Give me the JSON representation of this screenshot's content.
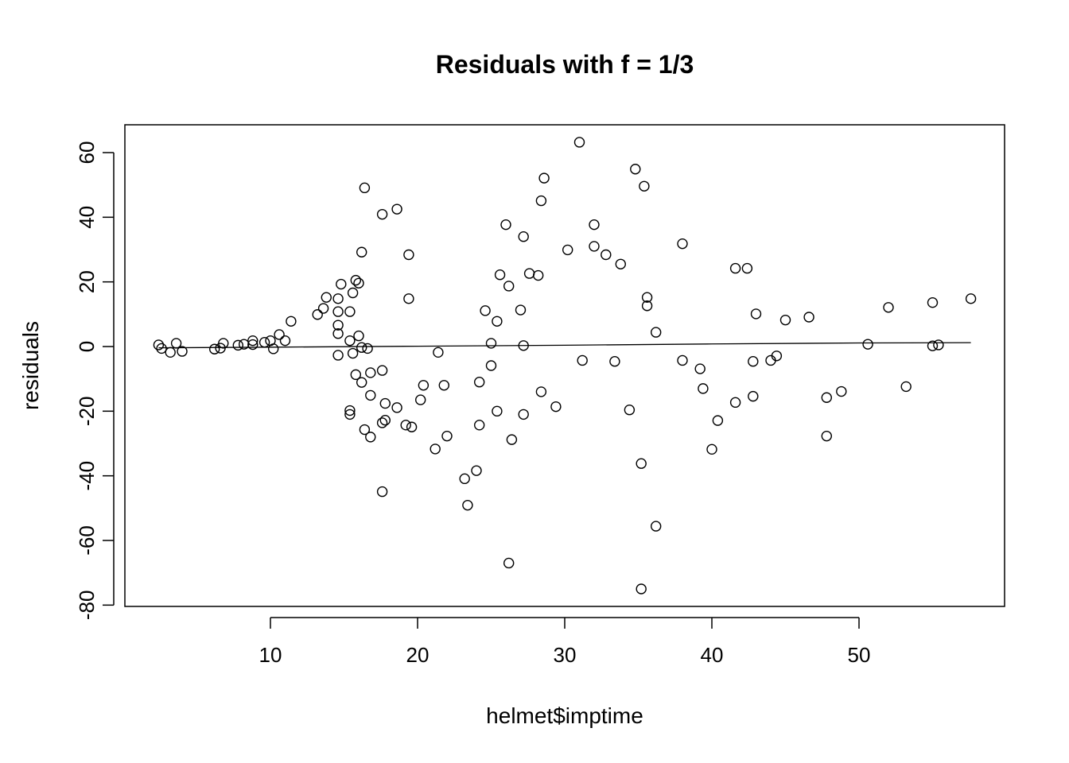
{
  "chart_data": {
    "type": "scatter",
    "title": "Residuals with f = 1/3",
    "xlabel": "helmet$imptime",
    "ylabel": "residuals",
    "xlim": [
      0,
      60
    ],
    "ylim": [
      -80,
      70
    ],
    "xticks": [
      10,
      20,
      30,
      40,
      50
    ],
    "yticks": [
      -80,
      -60,
      -40,
      -20,
      0,
      20,
      40,
      60
    ],
    "xtick_labels": [
      "10",
      "20",
      "30",
      "40",
      "50"
    ],
    "ytick_labels": [
      "-80",
      "-60",
      "-40",
      "-20",
      "0",
      "20",
      "40",
      "60"
    ],
    "grid": false,
    "points": [
      {
        "x": 2.4,
        "y": 0.5
      },
      {
        "x": 2.6,
        "y": -0.6
      },
      {
        "x": 3.2,
        "y": -1.8
      },
      {
        "x": 3.6,
        "y": 1.0
      },
      {
        "x": 4.0,
        "y": -1.5
      },
      {
        "x": 6.2,
        "y": -0.8
      },
      {
        "x": 6.6,
        "y": -0.5
      },
      {
        "x": 6.8,
        "y": 1.0
      },
      {
        "x": 7.8,
        "y": 0.4
      },
      {
        "x": 8.2,
        "y": 0.7
      },
      {
        "x": 8.8,
        "y": 1.8
      },
      {
        "x": 8.8,
        "y": 0.6
      },
      {
        "x": 9.6,
        "y": 1.3
      },
      {
        "x": 10.0,
        "y": 1.8
      },
      {
        "x": 10.2,
        "y": -0.7
      },
      {
        "x": 10.6,
        "y": 3.7
      },
      {
        "x": 11.0,
        "y": 1.8
      },
      {
        "x": 11.4,
        "y": 7.8
      },
      {
        "x": 13.2,
        "y": 9.9
      },
      {
        "x": 13.6,
        "y": 11.8
      },
      {
        "x": 13.8,
        "y": 15.2
      },
      {
        "x": 14.6,
        "y": 14.8
      },
      {
        "x": 14.6,
        "y": 10.8
      },
      {
        "x": 14.6,
        "y": 6.6
      },
      {
        "x": 14.6,
        "y": 4.0
      },
      {
        "x": 14.6,
        "y": -2.7
      },
      {
        "x": 14.8,
        "y": 19.3
      },
      {
        "x": 15.4,
        "y": 10.8
      },
      {
        "x": 15.4,
        "y": 1.8
      },
      {
        "x": 15.4,
        "y": -19.8
      },
      {
        "x": 15.4,
        "y": -21.0
      },
      {
        "x": 15.6,
        "y": 16.6
      },
      {
        "x": 15.6,
        "y": -2.1
      },
      {
        "x": 15.8,
        "y": 20.5
      },
      {
        "x": 15.8,
        "y": -8.7
      },
      {
        "x": 16.0,
        "y": 19.6
      },
      {
        "x": 16.0,
        "y": 3.3
      },
      {
        "x": 16.2,
        "y": 29.2
      },
      {
        "x": 16.2,
        "y": -0.3
      },
      {
        "x": 16.2,
        "y": -11.1
      },
      {
        "x": 16.4,
        "y": 49.1
      },
      {
        "x": 16.4,
        "y": -25.7
      },
      {
        "x": 16.6,
        "y": -0.6
      },
      {
        "x": 16.8,
        "y": -8.1
      },
      {
        "x": 16.8,
        "y": -15.1
      },
      {
        "x": 16.8,
        "y": -28.0
      },
      {
        "x": 17.6,
        "y": 40.9
      },
      {
        "x": 17.6,
        "y": -7.4
      },
      {
        "x": 17.6,
        "y": -23.6
      },
      {
        "x": 17.6,
        "y": -44.9
      },
      {
        "x": 17.8,
        "y": -17.6
      },
      {
        "x": 17.8,
        "y": -22.8
      },
      {
        "x": 18.6,
        "y": 42.5
      },
      {
        "x": 18.6,
        "y": -18.9
      },
      {
        "x": 19.2,
        "y": -24.3
      },
      {
        "x": 19.4,
        "y": 28.4
      },
      {
        "x": 19.4,
        "y": 14.8
      },
      {
        "x": 19.6,
        "y": -24.9
      },
      {
        "x": 20.2,
        "y": -16.5
      },
      {
        "x": 20.4,
        "y": -12.0
      },
      {
        "x": 21.2,
        "y": -31.7
      },
      {
        "x": 21.4,
        "y": -1.8
      },
      {
        "x": 21.8,
        "y": -12.0
      },
      {
        "x": 22.0,
        "y": -27.7
      },
      {
        "x": 23.2,
        "y": -40.9
      },
      {
        "x": 23.4,
        "y": -49.1
      },
      {
        "x": 24.0,
        "y": -38.4
      },
      {
        "x": 24.2,
        "y": -11.0
      },
      {
        "x": 24.2,
        "y": -24.3
      },
      {
        "x": 24.6,
        "y": 11.1
      },
      {
        "x": 25.0,
        "y": 1.0
      },
      {
        "x": 25.0,
        "y": -5.9
      },
      {
        "x": 25.4,
        "y": 7.8
      },
      {
        "x": 25.4,
        "y": -20.0
      },
      {
        "x": 25.6,
        "y": 22.2
      },
      {
        "x": 26.0,
        "y": 37.7
      },
      {
        "x": 26.2,
        "y": 18.7
      },
      {
        "x": 26.2,
        "y": -67.0
      },
      {
        "x": 26.4,
        "y": -28.8
      },
      {
        "x": 27.0,
        "y": 11.3
      },
      {
        "x": 27.2,
        "y": 34.0
      },
      {
        "x": 27.2,
        "y": 0.3
      },
      {
        "x": 27.2,
        "y": -21.0
      },
      {
        "x": 27.6,
        "y": 22.6
      },
      {
        "x": 28.2,
        "y": 22.0
      },
      {
        "x": 28.4,
        "y": 45.1
      },
      {
        "x": 28.4,
        "y": -14.0
      },
      {
        "x": 28.6,
        "y": 52.1
      },
      {
        "x": 29.4,
        "y": -18.6
      },
      {
        "x": 30.2,
        "y": 29.9
      },
      {
        "x": 31.0,
        "y": 63.2
      },
      {
        "x": 31.2,
        "y": -4.3
      },
      {
        "x": 32.0,
        "y": 37.7
      },
      {
        "x": 32.0,
        "y": 31.0
      },
      {
        "x": 32.8,
        "y": 28.4
      },
      {
        "x": 33.4,
        "y": -4.6
      },
      {
        "x": 33.8,
        "y": 25.5
      },
      {
        "x": 34.4,
        "y": -19.6
      },
      {
        "x": 34.8,
        "y": 54.9
      },
      {
        "x": 35.2,
        "y": -36.2
      },
      {
        "x": 35.2,
        "y": -75.0
      },
      {
        "x": 35.4,
        "y": 49.6
      },
      {
        "x": 35.6,
        "y": 15.2
      },
      {
        "x": 35.6,
        "y": 12.6
      },
      {
        "x": 36.2,
        "y": 4.4
      },
      {
        "x": 36.2,
        "y": -55.6
      },
      {
        "x": 38.0,
        "y": 31.8
      },
      {
        "x": 38.0,
        "y": -4.3
      },
      {
        "x": 39.2,
        "y": -6.9
      },
      {
        "x": 39.4,
        "y": -13.0
      },
      {
        "x": 40.0,
        "y": -31.8
      },
      {
        "x": 40.4,
        "y": -22.9
      },
      {
        "x": 41.6,
        "y": 24.2
      },
      {
        "x": 41.6,
        "y": -17.3
      },
      {
        "x": 42.4,
        "y": 24.2
      },
      {
        "x": 42.8,
        "y": -4.6
      },
      {
        "x": 42.8,
        "y": -15.4
      },
      {
        "x": 43.0,
        "y": 10.1
      },
      {
        "x": 44.0,
        "y": -4.3
      },
      {
        "x": 44.4,
        "y": -2.9
      },
      {
        "x": 45.0,
        "y": 8.2
      },
      {
        "x": 46.6,
        "y": 9.1
      },
      {
        "x": 47.8,
        "y": -15.8
      },
      {
        "x": 47.8,
        "y": -27.7
      },
      {
        "x": 48.8,
        "y": -13.9
      },
      {
        "x": 50.6,
        "y": 0.7
      },
      {
        "x": 52.0,
        "y": 12.1
      },
      {
        "x": 53.2,
        "y": -12.4
      },
      {
        "x": 55.0,
        "y": 13.6
      },
      {
        "x": 55.0,
        "y": 0.2
      },
      {
        "x": 55.4,
        "y": 0.5
      },
      {
        "x": 57.6,
        "y": 14.8
      }
    ],
    "smooth_line": [
      {
        "x": 2.4,
        "y": -0.4
      },
      {
        "x": 10.0,
        "y": -0.2
      },
      {
        "x": 20.0,
        "y": 0.1
      },
      {
        "x": 30.0,
        "y": 0.4
      },
      {
        "x": 40.0,
        "y": 0.8
      },
      {
        "x": 50.0,
        "y": 1.1
      },
      {
        "x": 57.6,
        "y": 1.2
      }
    ]
  }
}
